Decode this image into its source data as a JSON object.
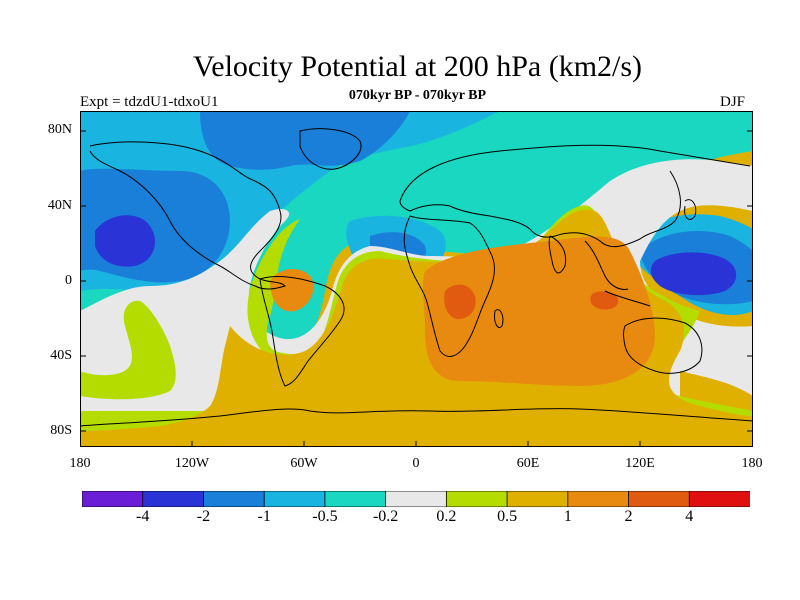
{
  "title": "Velocity Potential at 200 hPa (km2/s)",
  "subtitle": "070kyr BP - 070kyr BP",
  "experiment_label": "Expt = tdzdU1-tdxoU1",
  "season_label": "DJF",
  "lat_labels": [
    "80N",
    "40N",
    "0",
    "40S",
    "80S"
  ],
  "lon_labels": [
    "180",
    "120W",
    "60W",
    "0",
    "60E",
    "120E",
    "180"
  ],
  "colorbar": {
    "colors": [
      "#6a1fd6",
      "#2a34d6",
      "#1a7fd8",
      "#1ab4e0",
      "#19d7c0",
      "#e8e8e8",
      "#b4dc00",
      "#e0b000",
      "#e88a10",
      "#e05a10",
      "#e01010"
    ],
    "labels": [
      "-4",
      "-2",
      "-1",
      "-0.5",
      "-0.2",
      "0.2",
      "0.5",
      "1",
      "2",
      "4"
    ]
  },
  "colors": {
    "strong_negative": "#2a34d6",
    "negative": "#1a7fd8",
    "weak_negative": "#1ab4e0",
    "near_zero_negative": "#19d7c0",
    "near_zero": "#e8e8e8",
    "weak_positive": "#b4dc00",
    "positive": "#e0b000",
    "strong_positive": "#e88a10",
    "very_strong_positive": "#e05a10"
  }
}
